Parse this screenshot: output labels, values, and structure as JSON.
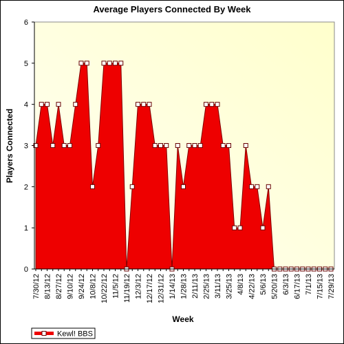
{
  "chart_data": {
    "type": "area",
    "title": "Average Players Connected By Week",
    "x_label": "Week",
    "y_label": "Players Connected",
    "categories": [
      "7/30/12",
      null,
      "8/13/12",
      null,
      "8/27/12",
      null,
      "9/10/12",
      null,
      "9/24/12",
      null,
      "10/8/12",
      null,
      "10/22/12",
      null,
      "11/5/12",
      null,
      "11/19/12",
      null,
      "12/3/12",
      null,
      "12/17/12",
      null,
      "12/31/12",
      null,
      "1/14/13",
      null,
      "1/28/13",
      null,
      "2/11/13",
      null,
      "2/25/13",
      null,
      "3/11/13",
      null,
      "3/25/13",
      null,
      "4/8/13",
      null,
      "4/22/13",
      null,
      "5/6/13",
      null,
      "5/20/13",
      null,
      "6/3/13",
      null,
      "6/17/13",
      null,
      "7/1/13",
      null,
      "7/15/13",
      null,
      "7/29/13"
    ],
    "series": [
      {
        "name": "Kewl! BBS",
        "color": "#ee0000",
        "values": [
          3,
          4,
          4,
          3,
          4,
          3,
          3,
          4,
          5,
          5,
          2,
          3,
          5,
          5,
          5,
          5,
          0,
          2,
          4,
          4,
          4,
          3,
          3,
          3,
          0,
          3,
          2,
          3,
          3,
          3,
          4,
          4,
          4,
          3,
          3,
          1,
          1,
          3,
          2,
          2,
          1,
          2,
          0,
          0,
          0,
          0,
          0,
          0,
          0,
          0,
          0,
          0,
          0
        ]
      }
    ],
    "ylim": [
      0,
      6
    ],
    "yticks": [
      0,
      1,
      2,
      3,
      4,
      5,
      6
    ],
    "legend": "bottom-left"
  }
}
